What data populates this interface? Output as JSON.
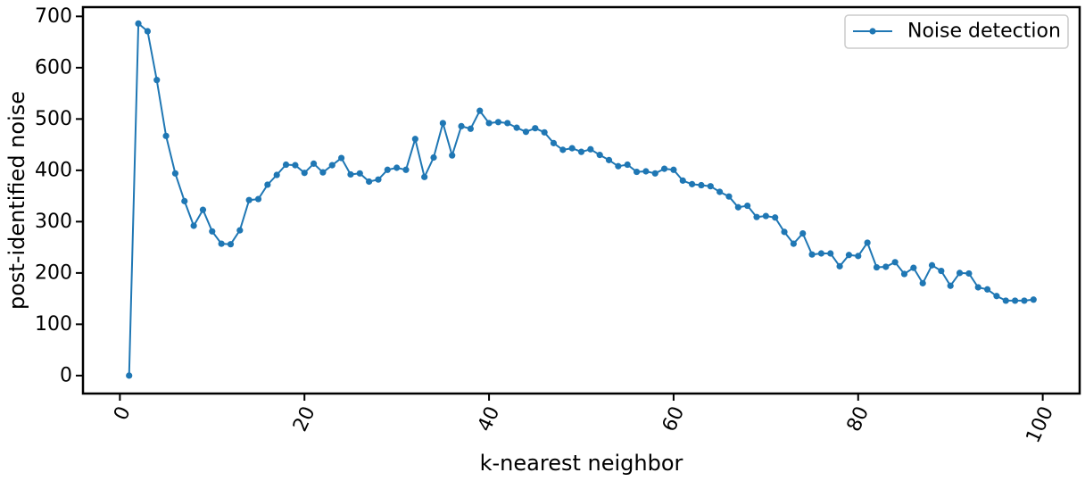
{
  "chart_data": {
    "type": "line",
    "title": "",
    "xlabel": "k-nearest neighbor",
    "ylabel": "post-identified noise",
    "xlim": [
      -4,
      104
    ],
    "ylim": [
      -35,
      718
    ],
    "xticks": [
      0,
      20,
      40,
      60,
      80,
      100
    ],
    "xtick_labels": [
      "0",
      "20",
      "40",
      "60",
      "80",
      "100"
    ],
    "xtick_rotation": -65,
    "yticks": [
      0,
      100,
      200,
      300,
      400,
      500,
      600,
      700
    ],
    "ytick_labels": [
      "0",
      "100",
      "200",
      "300",
      "400",
      "500",
      "600",
      "700"
    ],
    "grid": false,
    "legend_position": "top-right",
    "series": [
      {
        "name": "Noise detection",
        "color": "#1f77b4",
        "marker": "circle",
        "x": [
          1,
          2,
          3,
          4,
          5,
          6,
          7,
          8,
          9,
          10,
          11,
          12,
          13,
          14,
          15,
          16,
          17,
          18,
          19,
          20,
          21,
          22,
          23,
          24,
          25,
          26,
          27,
          28,
          29,
          30,
          31,
          32,
          33,
          34,
          35,
          36,
          37,
          38,
          39,
          40,
          41,
          42,
          43,
          44,
          45,
          46,
          47,
          48,
          49,
          50,
          51,
          52,
          53,
          54,
          55,
          56,
          57,
          58,
          59,
          60,
          61,
          62,
          63,
          64,
          65,
          66,
          67,
          68,
          69,
          70,
          71,
          72,
          73,
          74,
          75,
          76,
          77,
          78,
          79,
          80,
          81,
          82,
          83,
          84,
          85,
          86,
          87,
          88,
          89,
          90,
          91,
          92,
          93,
          94,
          95,
          96,
          97,
          98,
          99
        ],
        "y": [
          0,
          686,
          671,
          576,
          467,
          394,
          340,
          292,
          323,
          281,
          257,
          256,
          283,
          342,
          344,
          372,
          391,
          411,
          410,
          395,
          413,
          396,
          410,
          424,
          392,
          394,
          378,
          382,
          401,
          405,
          401,
          461,
          387,
          425,
          492,
          429,
          486,
          481,
          516,
          492,
          494,
          492,
          483,
          475,
          482,
          474,
          453,
          440,
          443,
          436,
          441,
          430,
          420,
          408,
          411,
          397,
          398,
          394,
          403,
          401,
          380,
          373,
          371,
          369,
          358,
          349,
          328,
          331,
          309,
          311,
          308,
          280,
          257,
          277,
          236,
          238,
          238,
          213,
          235,
          233,
          259,
          211,
          212,
          221,
          198,
          210,
          180,
          215,
          204,
          175,
          200,
          199,
          172,
          168,
          155,
          146,
          146,
          146,
          148
        ]
      }
    ]
  }
}
